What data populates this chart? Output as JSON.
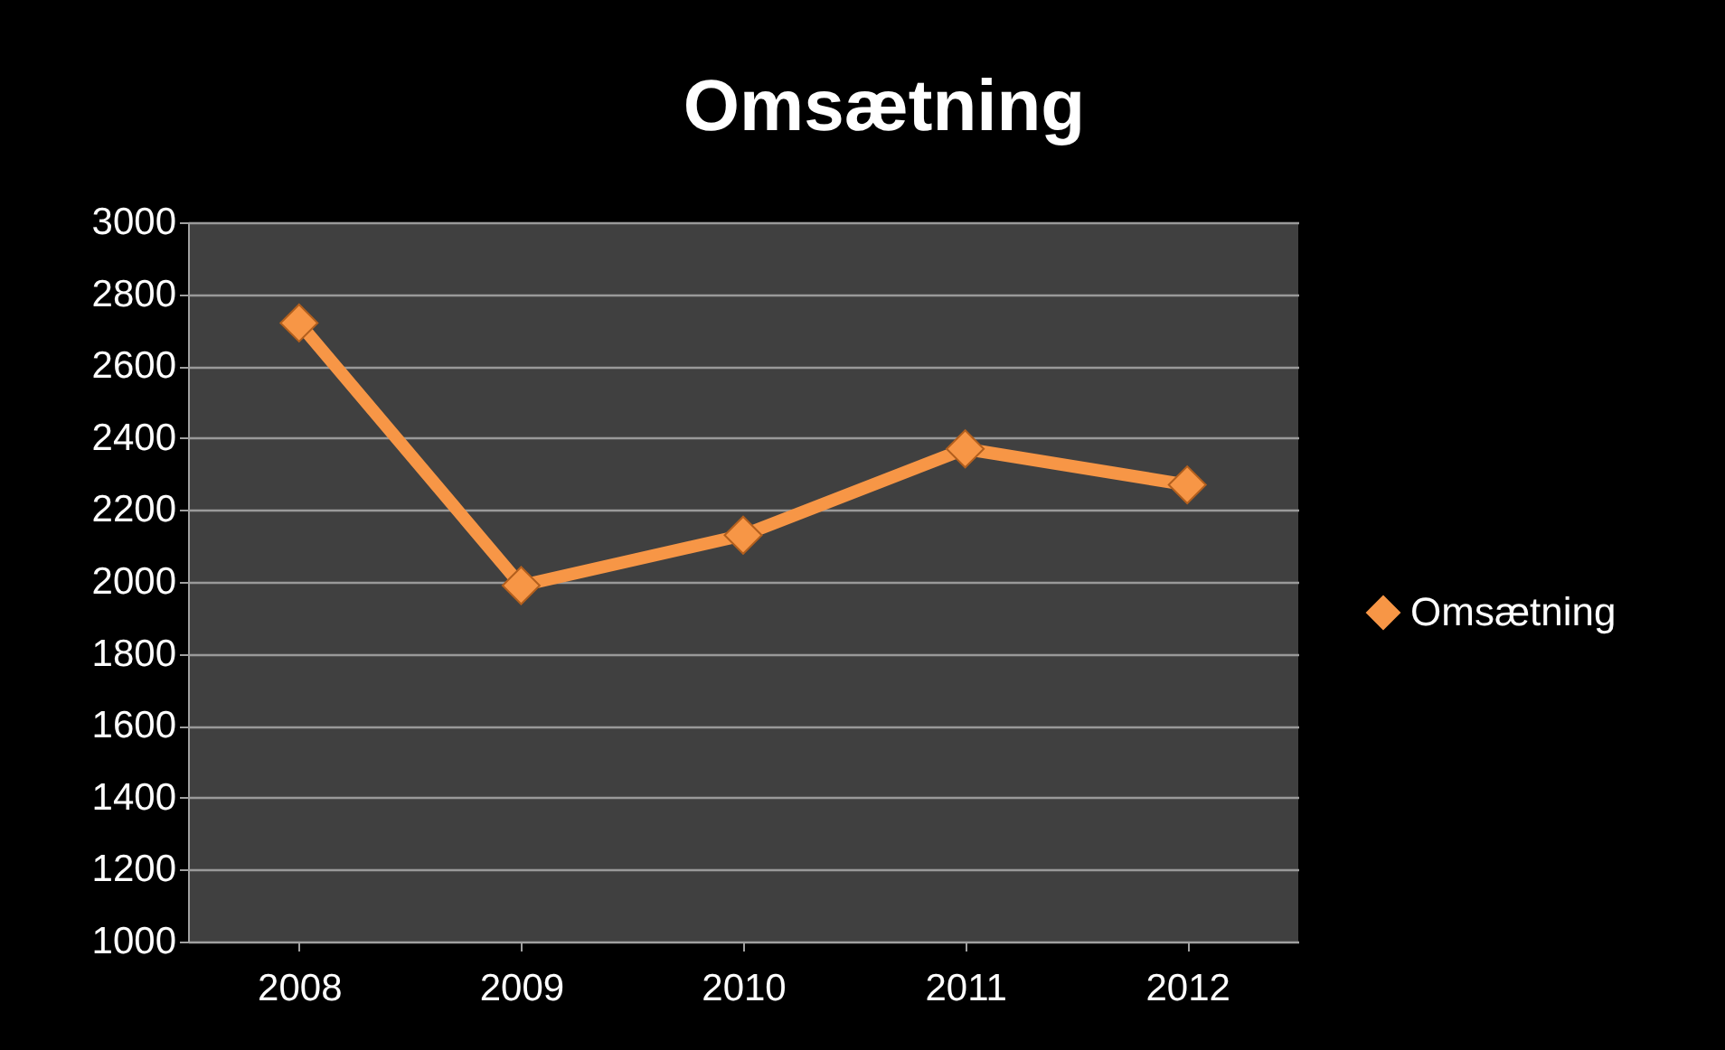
{
  "chart_data": {
    "type": "line",
    "title": "Omsætning",
    "categories": [
      "2008",
      "2009",
      "2010",
      "2011",
      "2012"
    ],
    "series": [
      {
        "name": "Omsætning",
        "color": "#f79646",
        "values": [
          2720,
          1990,
          2130,
          2370,
          2270
        ]
      }
    ],
    "ylim": [
      1000,
      3000
    ],
    "yticks": [
      1000,
      1200,
      1400,
      1600,
      1800,
      2000,
      2200,
      2400,
      2600,
      2800,
      3000
    ],
    "grid": "y",
    "legend": "right",
    "marker": "diamond",
    "line_style": "solid"
  }
}
